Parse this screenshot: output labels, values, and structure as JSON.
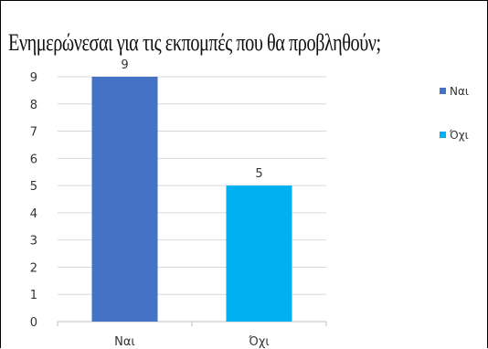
{
  "chart_data": {
    "type": "bar",
    "title": "Ενημερώνεσαι για τις εκπομπές που θα προβληθούν;",
    "categories": [
      "Ναι",
      "Όχι"
    ],
    "values": [
      9,
      5
    ],
    "colors": [
      "#4472C4",
      "#00B0F0"
    ],
    "ylim": [
      0,
      9
    ],
    "yticks": [
      0,
      1,
      2,
      3,
      4,
      5,
      6,
      7,
      8,
      9
    ],
    "grid": true,
    "data_labels": true,
    "legend": {
      "position": "right",
      "entries": [
        "Ναι",
        "Όχι"
      ]
    }
  }
}
